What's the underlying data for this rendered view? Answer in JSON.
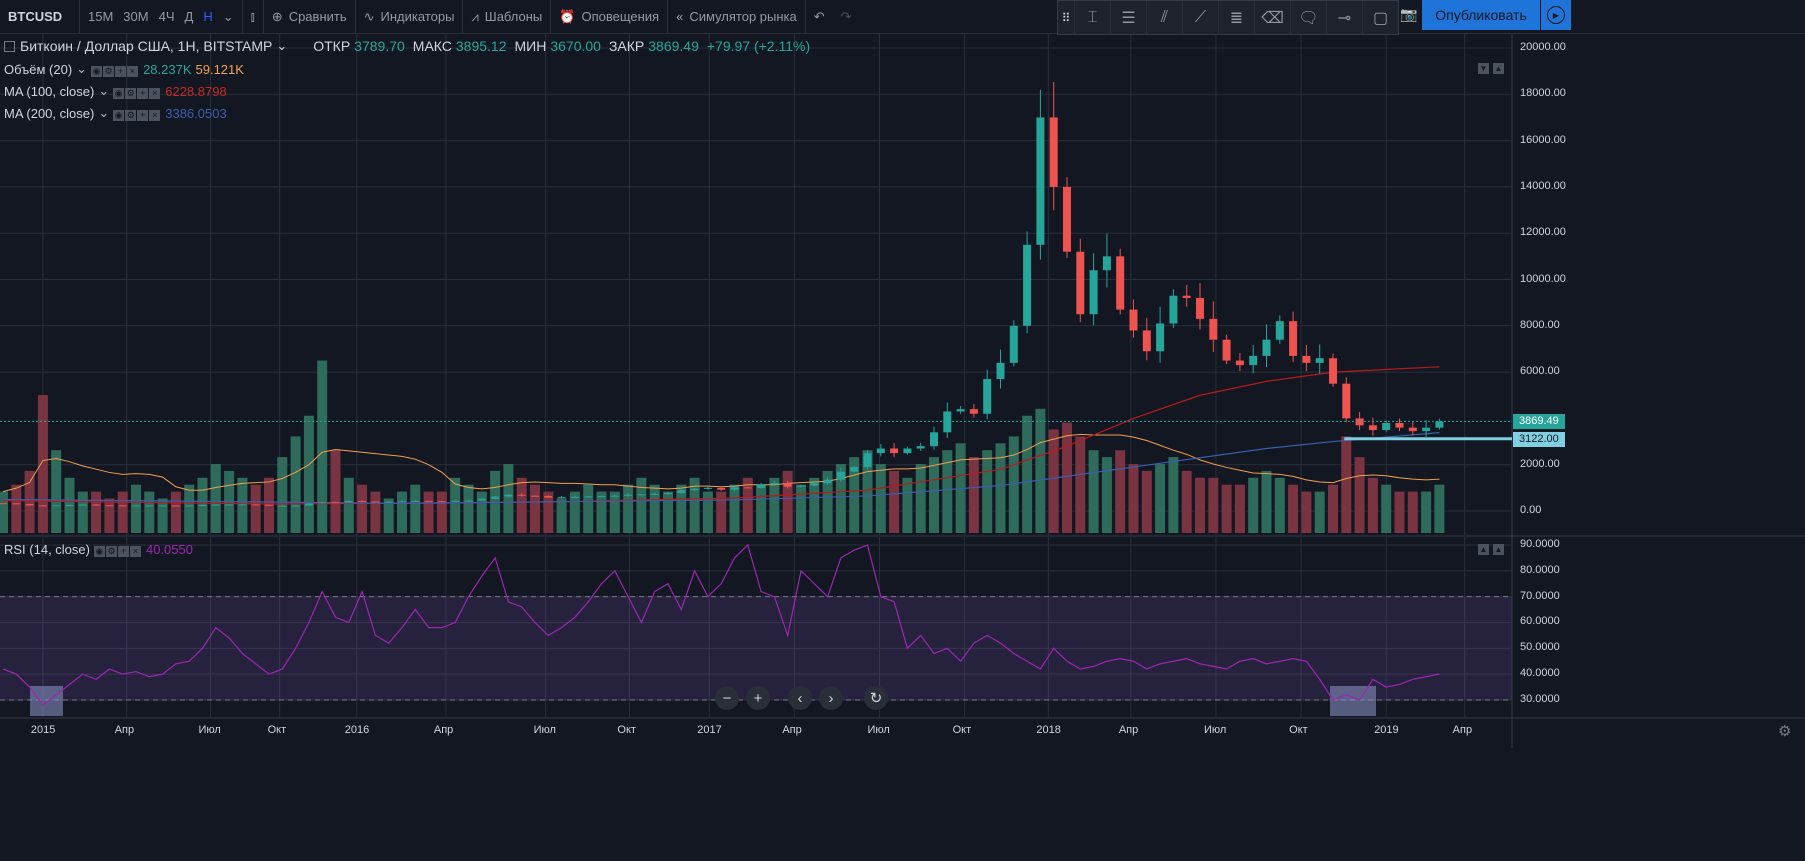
{
  "toolbar": {
    "symbol": "BTCUSD",
    "resolutions": [
      "15М",
      "30М",
      "4Ч",
      "Д",
      "Н"
    ],
    "active_resolution": "Н",
    "compare": "Сравнить",
    "indicators": "Индикаторы",
    "templates": "Шаблоны",
    "alerts": "Оповещения",
    "replay": "Симулятор рынка",
    "publish": "Опубликовать"
  },
  "legend": {
    "title": "Биткоин / Доллар США, 1Н, BITSTAMP",
    "open_label": "ОТКР",
    "open": "3789.70",
    "high_label": "МАКС",
    "high": "3895.12",
    "low_label": "МИН",
    "low": "3670.00",
    "close_label": "ЗАКР",
    "close": "3869.49",
    "change": "+79.97 (+2.11%)",
    "volume": {
      "name": "Объём (20)",
      "v1": "28.237K",
      "v2": "59.121K"
    },
    "ma100": {
      "name": "MA (100, close)",
      "value": "6228.8798"
    },
    "ma200": {
      "name": "MA (200, close)",
      "value": "3386.0503"
    },
    "rsi": {
      "name": "RSI (14, close)",
      "value": "40.0550"
    }
  },
  "price_tags": {
    "last": "3869.49",
    "line": "3122.00"
  },
  "colors": {
    "up": "#26a69a",
    "down": "#ef5350",
    "ma100": "#b71c1c",
    "ma200": "#3a5fb0",
    "volma": "#f0a050",
    "rsi": "#9c27b0",
    "accent": "#1e74d8"
  },
  "chart_data": {
    "type": "candlestick",
    "interval": "biweekly-approx",
    "price_ticks": [
      "20000.00",
      "18000.00",
      "16000.00",
      "14000.00",
      "12000.00",
      "10000.00",
      "8000.00",
      "6000.00",
      "2000.00",
      "0.00"
    ],
    "rsi_ticks": [
      "90.0000",
      "80.0000",
      "70.0000",
      "60.0000",
      "50.0000",
      "40.0000",
      "30.0000"
    ],
    "time_ticks": [
      {
        "label": "2015",
        "i": 3
      },
      {
        "label": "Апр",
        "i": 9.3
      },
      {
        "label": "Июл",
        "i": 15.6
      },
      {
        "label": "Окт",
        "i": 20.8
      },
      {
        "label": "2016",
        "i": 26.6
      },
      {
        "label": "Апр",
        "i": 33.3
      },
      {
        "label": "Июл",
        "i": 40.8
      },
      {
        "label": "Окт",
        "i": 47.1
      },
      {
        "label": "2017",
        "i": 53.1
      },
      {
        "label": "Апр",
        "i": 59.5
      },
      {
        "label": "Июл",
        "i": 65.9
      },
      {
        "label": "Окт",
        "i": 72.3
      },
      {
        "label": "2018",
        "i": 78.6
      },
      {
        "label": "Апр",
        "i": 84.8
      },
      {
        "label": "Июл",
        "i": 91.2
      },
      {
        "label": "Окт",
        "i": 97.6
      },
      {
        "label": "2019",
        "i": 104
      },
      {
        "label": "Апр",
        "i": 109.9
      }
    ],
    "ylim": [
      0,
      20000
    ],
    "close": [
      330,
      300,
      240,
      230,
      250,
      260,
      280,
      250,
      240,
      230,
      235,
      240,
      240,
      230,
      240,
      260,
      280,
      280,
      285,
      270,
      230,
      230,
      240,
      330,
      380,
      360,
      430,
      410,
      380,
      400,
      420,
      430,
      420,
      410,
      440,
      450,
      530,
      620,
      700,
      660,
      650,
      580,
      600,
      610,
      630,
      640,
      660,
      700,
      720,
      740,
      780,
      900,
      960,
      1000,
      920,
      1020,
      1000,
      1150,
      1200,
      1050,
      1100,
      1200,
      1350,
      1700,
      1900,
      2500,
      2700,
      2500,
      2700,
      2800,
      3400,
      4300,
      4400,
      4200,
      5700,
      6400,
      8000,
      11500,
      17000,
      14000,
      11200,
      8500,
      10400,
      11000,
      8700,
      7800,
      6900,
      8100,
      9300,
      9200,
      8300,
      7400,
      6500,
      6300,
      6700,
      7400,
      8200,
      6700,
      6400,
      6600,
      5500,
      4000,
      3700,
      3500,
      3800,
      3600,
      3450,
      3600,
      3869.49
    ],
    "volume_k": [
      30,
      35,
      45,
      100,
      60,
      40,
      30,
      30,
      25,
      30,
      35,
      30,
      25,
      30,
      35,
      40,
      50,
      45,
      40,
      35,
      40,
      55,
      70,
      85,
      125,
      60,
      40,
      35,
      30,
      25,
      30,
      35,
      30,
      30,
      40,
      35,
      30,
      45,
      50,
      40,
      35,
      30,
      25,
      30,
      35,
      30,
      30,
      35,
      40,
      35,
      30,
      35,
      40,
      30,
      30,
      35,
      40,
      35,
      40,
      45,
      35,
      40,
      45,
      50,
      55,
      60,
      50,
      45,
      40,
      50,
      55,
      60,
      65,
      55,
      60,
      65,
      70,
      85,
      90,
      75,
      80,
      70,
      60,
      55,
      60,
      50,
      45,
      50,
      55,
      45,
      40,
      40,
      35,
      35,
      40,
      45,
      40,
      35,
      30,
      30,
      35,
      70,
      55,
      40,
      35,
      30,
      30,
      30,
      35
    ],
    "ma100": [
      [
        0,
        450
      ],
      [
        20,
        300
      ],
      [
        40,
        380
      ],
      [
        55,
        560
      ],
      [
        65,
        900
      ],
      [
        75,
        1800
      ],
      [
        80,
        2800
      ],
      [
        85,
        4000
      ],
      [
        90,
        5000
      ],
      [
        95,
        5600
      ],
      [
        100,
        6000
      ],
      [
        108,
        6228.88
      ]
    ],
    "ma200": [
      [
        0,
        500
      ],
      [
        30,
        330
      ],
      [
        55,
        480
      ],
      [
        65,
        650
      ],
      [
        75,
        1100
      ],
      [
        85,
        1900
      ],
      [
        95,
        2700
      ],
      [
        100,
        3000
      ],
      [
        108,
        3386.05
      ]
    ],
    "rsi": [
      42,
      40,
      35,
      28,
      32,
      36,
      40,
      38,
      42,
      40,
      41,
      39,
      40,
      44,
      45,
      50,
      58,
      54,
      48,
      44,
      40,
      42,
      50,
      60,
      72,
      62,
      60,
      72,
      55,
      52,
      58,
      65,
      58,
      58,
      60,
      70,
      78,
      85,
      68,
      66,
      60,
      55,
      58,
      62,
      68,
      75,
      80,
      70,
      60,
      72,
      75,
      65,
      80,
      70,
      75,
      85,
      90,
      72,
      70,
      55,
      80,
      75,
      70,
      85,
      88,
      90,
      70,
      68,
      50,
      55,
      48,
      50,
      45,
      52,
      55,
      52,
      48,
      45,
      42,
      50,
      45,
      42,
      43,
      45,
      46,
      45,
      42,
      44,
      45,
      46,
      44,
      43,
      42,
      45,
      46,
      44,
      45,
      46,
      45,
      38,
      30,
      32,
      30,
      38,
      35,
      36,
      38,
      39,
      40.05
    ],
    "rsi_levels": [
      70,
      30
    ],
    "horizontal_line": 3122
  }
}
